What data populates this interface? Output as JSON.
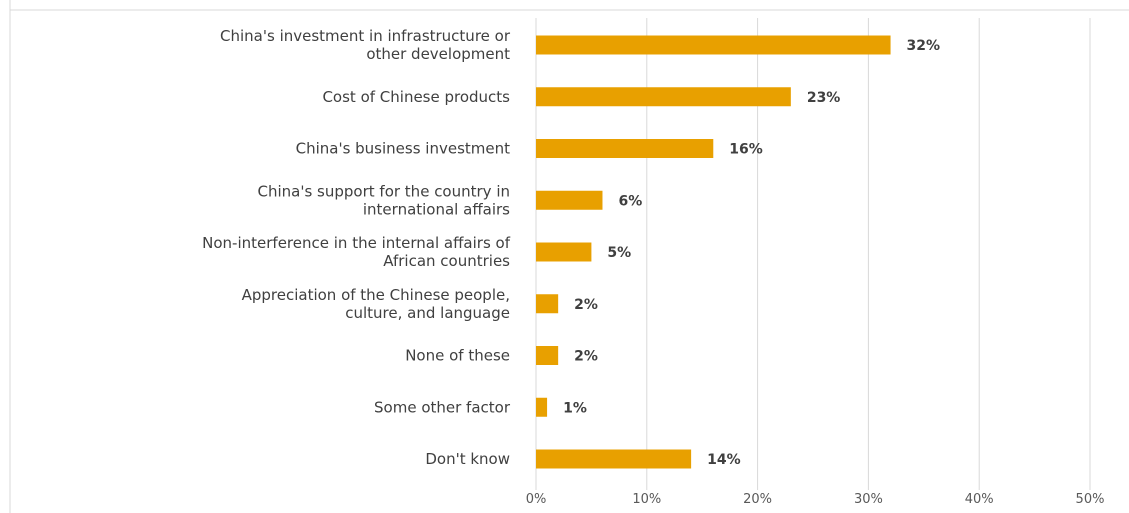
{
  "chart_data": {
    "type": "bar",
    "orientation": "horizontal",
    "title": "",
    "xlabel": "",
    "ylabel": "",
    "categories": [
      "China's investment in infrastructure or other development",
      "Cost of Chinese products",
      "China's business investment",
      "China's support for the country in international affairs",
      "Non-interference in the internal affairs of African countries",
      "Appreciation of the Chinese people, culture, and language",
      "None of these",
      "Some other factor",
      "Don't know"
    ],
    "category_lines": [
      [
        "China's investment in infrastructure or",
        "other development"
      ],
      [
        "Cost of Chinese products"
      ],
      [
        "China's business investment"
      ],
      [
        "China's support for the country in",
        "international affairs"
      ],
      [
        "Non-interference in the internal affairs of",
        "African countries"
      ],
      [
        "Appreciation of the Chinese people,",
        "culture, and language"
      ],
      [
        "None of these"
      ],
      [
        "Some other factor"
      ],
      [
        "Don't know"
      ]
    ],
    "values": [
      32,
      23,
      16,
      6,
      5,
      2,
      2,
      1,
      14
    ],
    "data_labels": [
      "32%",
      "23%",
      "16%",
      "6%",
      "5%",
      "2%",
      "2%",
      "1%",
      "14%"
    ],
    "xlim": [
      0,
      50
    ],
    "x_ticks": [
      0,
      10,
      20,
      30,
      40,
      50
    ],
    "x_tick_labels": [
      "0%",
      "10%",
      "20%",
      "30%",
      "40%",
      "50%"
    ],
    "grid": true,
    "legend": "none",
    "bar_color": "#e8a000"
  }
}
